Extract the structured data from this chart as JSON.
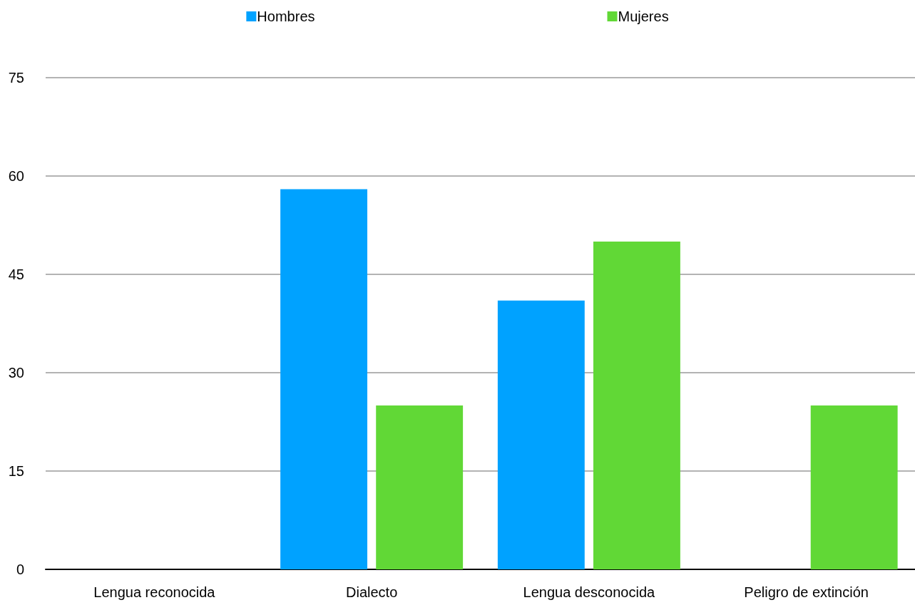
{
  "chart_data": {
    "type": "bar",
    "categories": [
      "Lengua reconocida",
      "Dialecto",
      "Lengua desconocida",
      "Peligro de extinción"
    ],
    "series": [
      {
        "name": "Hombres",
        "color": "#00a2ff",
        "values": [
          0,
          58,
          41,
          0
        ]
      },
      {
        "name": "Mujeres",
        "color": "#61d836",
        "values": [
          0,
          25,
          50,
          25
        ]
      }
    ],
    "ylim": [
      0,
      75
    ],
    "yticks": [
      0,
      15,
      30,
      45,
      60,
      75
    ],
    "grid": "y",
    "legend": "top"
  }
}
